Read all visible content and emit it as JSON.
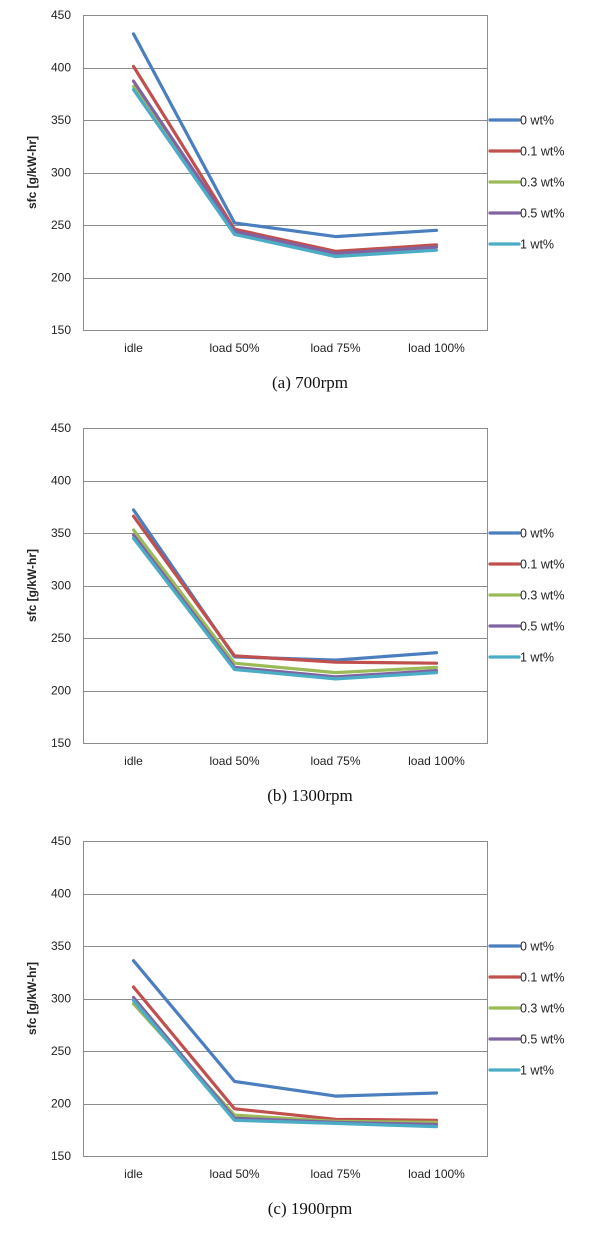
{
  "figure": {
    "legend_position": "right",
    "colors": {
      "grid": "#8c8c8c",
      "text": "#222222"
    }
  },
  "chart_data": [
    {
      "type": "line",
      "caption": "(a)  700rpm",
      "ylabel": "sfc [g/kW-hr]",
      "xlabel": "",
      "ylim": [
        150,
        450
      ],
      "yticks": [
        150,
        200,
        250,
        300,
        350,
        400,
        450
      ],
      "grid": true,
      "categories": [
        "idle",
        "load 50%",
        "load 75%",
        "load 100%"
      ],
      "series": [
        {
          "name": "0 wt%",
          "color": "#4a7ebf",
          "values": [
            432,
            252,
            239,
            245
          ]
        },
        {
          "name": "0.1 wt%",
          "color": "#c0504d",
          "values": [
            401,
            246,
            225,
            231
          ]
        },
        {
          "name": "0.3 wt%",
          "color": "#9bbb59",
          "values": [
            382,
            243,
            222,
            229
          ]
        },
        {
          "name": "0.5 wt%",
          "color": "#8064a2",
          "values": [
            387,
            244,
            223,
            229
          ]
        },
        {
          "name": "1 wt%",
          "color": "#4bacc6",
          "values": [
            379,
            241,
            220,
            226
          ]
        }
      ]
    },
    {
      "type": "line",
      "caption": "(b)  1300rpm",
      "ylabel": "sfc [g/kW-hr]",
      "xlabel": "",
      "ylim": [
        150,
        450
      ],
      "yticks": [
        150,
        200,
        250,
        300,
        350,
        400,
        450
      ],
      "grid": true,
      "categories": [
        "idle",
        "load 50%",
        "load 75%",
        "load 100%"
      ],
      "series": [
        {
          "name": "0 wt%",
          "color": "#4a7ebf",
          "values": [
            372,
            232,
            229,
            236
          ]
        },
        {
          "name": "0.1 wt%",
          "color": "#c0504d",
          "values": [
            366,
            233,
            227,
            226
          ]
        },
        {
          "name": "0.3 wt%",
          "color": "#9bbb59",
          "values": [
            353,
            226,
            217,
            222
          ]
        },
        {
          "name": "0.5 wt%",
          "color": "#8064a2",
          "values": [
            348,
            222,
            213,
            219
          ]
        },
        {
          "name": "1 wt%",
          "color": "#4bacc6",
          "values": [
            345,
            220,
            211,
            217
          ]
        }
      ]
    },
    {
      "type": "line",
      "caption": "(c)  1900rpm",
      "ylabel": "sfc [g/kW-hr]",
      "xlabel": "",
      "ylim": [
        150,
        450
      ],
      "yticks": [
        150,
        200,
        250,
        300,
        350,
        400,
        450
      ],
      "grid": true,
      "categories": [
        "idle",
        "load 50%",
        "load 75%",
        "load 100%"
      ],
      "series": [
        {
          "name": "0 wt%",
          "color": "#4a7ebf",
          "values": [
            336,
            221,
            207,
            210
          ]
        },
        {
          "name": "0.1 wt%",
          "color": "#c0504d",
          "values": [
            311,
            195,
            185,
            184
          ]
        },
        {
          "name": "0.3 wt%",
          "color": "#9bbb59",
          "values": [
            295,
            189,
            183,
            182
          ]
        },
        {
          "name": "0.5 wt%",
          "color": "#8064a2",
          "values": [
            301,
            186,
            182,
            180
          ]
        },
        {
          "name": "1 wt%",
          "color": "#4bacc6",
          "values": [
            298,
            184,
            181,
            178
          ]
        }
      ]
    }
  ]
}
